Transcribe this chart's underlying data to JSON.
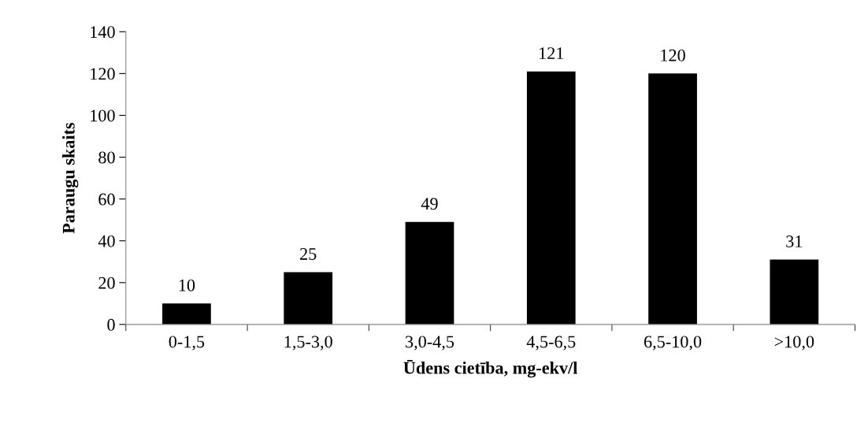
{
  "chart_data": {
    "type": "bar",
    "categories": [
      "0-1,5",
      "1,5-3,0",
      "3,0-4,5",
      "4,5-6,5",
      "6,5-10,0",
      ">10,0"
    ],
    "values": [
      10,
      25,
      49,
      121,
      120,
      31
    ],
    "color": "#000000",
    "xlabel": "Ūdens cietība, mg-ekv/l",
    "ylabel": "Paraugu skaits",
    "ylim": [
      0,
      140
    ],
    "yticks": [
      0,
      20,
      40,
      60,
      80,
      100,
      120,
      140
    ],
    "data_labels": true,
    "grid": false,
    "legend": false
  }
}
